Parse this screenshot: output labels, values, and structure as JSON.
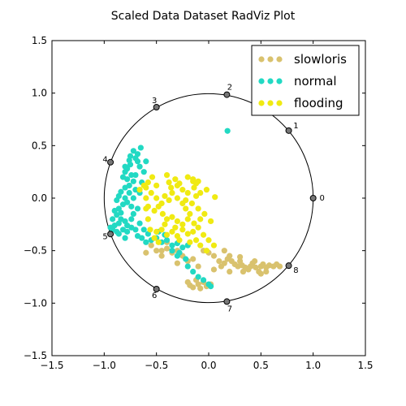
{
  "chart_data": {
    "type": "scatter",
    "title": "Scaled Data Dataset RadViz Plot",
    "xlim": [
      -1.5,
      1.5
    ],
    "ylim": [
      -1.5,
      1.5
    ],
    "x_ticks": [
      "−1.5",
      "−1.0",
      "−0.5",
      "0.0",
      "0.5",
      "1.0",
      "1.5"
    ],
    "y_ticks": [
      "−1.5",
      "−1.0",
      "−0.5",
      "0.0",
      "0.5",
      "1.0",
      "1.5"
    ],
    "grid": false,
    "legend_position": "top-right",
    "unit_circle_radius": 1.0,
    "anchors": [
      {
        "label": "0",
        "x": 1.0,
        "y": 0.0
      },
      {
        "label": "1",
        "x": 0.766,
        "y": 0.643
      },
      {
        "label": "2",
        "x": 0.174,
        "y": 0.985
      },
      {
        "label": "3",
        "x": -0.5,
        "y": 0.866
      },
      {
        "label": "4",
        "x": -0.94,
        "y": 0.342
      },
      {
        "label": "5",
        "x": -0.94,
        "y": -0.342
      },
      {
        "label": "6",
        "x": -0.5,
        "y": -0.866
      },
      {
        "label": "7",
        "x": 0.174,
        "y": -0.985
      },
      {
        "label": "8",
        "x": 0.766,
        "y": -0.643
      }
    ],
    "series": [
      {
        "name": "slowloris",
        "color": "#d9c26e",
        "points": [
          [
            -0.55,
            -0.45
          ],
          [
            -0.5,
            -0.5
          ],
          [
            -0.45,
            -0.5
          ],
          [
            -0.4,
            -0.48
          ],
          [
            -0.35,
            -0.52
          ],
          [
            -0.3,
            -0.5
          ],
          [
            -0.25,
            -0.55
          ],
          [
            -0.2,
            -0.6
          ],
          [
            -0.15,
            -0.58
          ],
          [
            -0.05,
            -0.5
          ],
          [
            0.0,
            -0.52
          ],
          [
            0.05,
            -0.55
          ],
          [
            0.1,
            -0.6
          ],
          [
            0.12,
            -0.65
          ],
          [
            0.15,
            -0.62
          ],
          [
            0.18,
            -0.58
          ],
          [
            0.22,
            -0.6
          ],
          [
            0.25,
            -0.63
          ],
          [
            0.28,
            -0.65
          ],
          [
            0.3,
            -0.6
          ],
          [
            0.32,
            -0.64
          ],
          [
            0.35,
            -0.66
          ],
          [
            0.38,
            -0.68
          ],
          [
            0.4,
            -0.65
          ],
          [
            0.42,
            -0.62
          ],
          [
            0.45,
            -0.66
          ],
          [
            0.48,
            -0.7
          ],
          [
            0.5,
            -0.65
          ],
          [
            0.52,
            -0.63
          ],
          [
            0.55,
            -0.66
          ],
          [
            0.58,
            -0.64
          ],
          [
            0.62,
            -0.65
          ],
          [
            0.65,
            -0.63
          ],
          [
            0.68,
            -0.65
          ],
          [
            0.55,
            -0.7
          ],
          [
            0.3,
            -0.56
          ],
          [
            0.2,
            -0.55
          ],
          [
            0.33,
            -0.7
          ],
          [
            0.44,
            -0.6
          ],
          [
            0.5,
            -0.72
          ],
          [
            -0.2,
            -0.8
          ],
          [
            -0.15,
            -0.85
          ],
          [
            -0.1,
            -0.82
          ],
          [
            -0.05,
            -0.8
          ],
          [
            -0.12,
            -0.78
          ],
          [
            -0.18,
            -0.83
          ],
          [
            -0.08,
            -0.86
          ],
          [
            -0.02,
            -0.84
          ],
          [
            0.02,
            -0.82
          ],
          [
            -0.3,
            -0.62
          ],
          [
            -0.1,
            -0.65
          ],
          [
            0.05,
            -0.68
          ],
          [
            0.15,
            -0.5
          ],
          [
            0.2,
            -0.7
          ],
          [
            -0.4,
            -0.42
          ],
          [
            -0.45,
            -0.55
          ],
          [
            -0.6,
            -0.52
          ]
        ]
      },
      {
        "name": "normal",
        "color": "#22d9c3",
        "points": [
          [
            0.18,
            0.64
          ],
          [
            -0.65,
            0.48
          ],
          [
            -0.68,
            0.42
          ],
          [
            -0.72,
            0.45
          ],
          [
            -0.7,
            0.38
          ],
          [
            -0.75,
            0.4
          ],
          [
            -0.75,
            0.32
          ],
          [
            -0.78,
            0.28
          ],
          [
            -0.8,
            0.25
          ],
          [
            -0.82,
            0.2
          ],
          [
            -0.78,
            0.18
          ],
          [
            -0.76,
            0.12
          ],
          [
            -0.8,
            0.1
          ],
          [
            -0.84,
            0.06
          ],
          [
            -0.86,
            0.02
          ],
          [
            -0.8,
            0.0
          ],
          [
            -0.78,
            -0.04
          ],
          [
            -0.82,
            -0.06
          ],
          [
            -0.86,
            -0.1
          ],
          [
            -0.9,
            -0.12
          ],
          [
            -0.88,
            -0.16
          ],
          [
            -0.84,
            -0.2
          ],
          [
            -0.8,
            -0.22
          ],
          [
            -0.86,
            -0.24
          ],
          [
            -0.9,
            -0.26
          ],
          [
            -0.92,
            -0.3
          ],
          [
            -0.88,
            -0.32
          ],
          [
            -0.82,
            -0.3
          ],
          [
            -0.78,
            -0.26
          ],
          [
            -0.74,
            -0.2
          ],
          [
            -0.72,
            -0.15
          ],
          [
            -0.74,
            -0.08
          ],
          [
            -0.72,
            0.0
          ],
          [
            -0.7,
            0.08
          ],
          [
            -0.72,
            0.16
          ],
          [
            -0.7,
            0.22
          ],
          [
            -0.66,
            0.3
          ],
          [
            -0.68,
            0.35
          ],
          [
            -0.76,
            0.36
          ],
          [
            -0.8,
            0.3
          ],
          [
            -0.74,
            0.22
          ],
          [
            -0.76,
            0.05
          ],
          [
            -0.84,
            -0.14
          ],
          [
            -0.78,
            -0.32
          ],
          [
            -0.74,
            -0.28
          ],
          [
            -0.7,
            -0.3
          ],
          [
            -0.68,
            -0.36
          ],
          [
            -0.64,
            -0.38
          ],
          [
            -0.6,
            -0.42
          ],
          [
            -0.55,
            -0.4
          ],
          [
            -0.5,
            -0.38
          ],
          [
            -0.45,
            -0.42
          ],
          [
            -0.4,
            -0.4
          ],
          [
            -0.35,
            -0.45
          ],
          [
            -0.3,
            -0.43
          ],
          [
            -0.25,
            -0.47
          ],
          [
            -0.2,
            -0.45
          ],
          [
            -0.3,
            -0.55
          ],
          [
            -0.35,
            -0.5
          ],
          [
            -0.28,
            -0.52
          ],
          [
            -0.22,
            -0.58
          ],
          [
            -0.2,
            -0.65
          ],
          [
            -0.15,
            -0.7
          ],
          [
            -0.1,
            -0.75
          ],
          [
            -0.05,
            -0.78
          ],
          [
            0.0,
            -0.82
          ],
          [
            0.02,
            -0.84
          ],
          [
            -0.42,
            -0.35
          ],
          [
            -0.48,
            -0.32
          ],
          [
            -0.58,
            -0.34
          ],
          [
            -0.62,
            -0.3
          ],
          [
            -0.66,
            -0.24
          ],
          [
            -0.68,
            -0.1
          ],
          [
            -0.66,
            0.05
          ],
          [
            -0.64,
            0.15
          ],
          [
            -0.62,
            0.25
          ],
          [
            -0.6,
            0.35
          ],
          [
            -0.88,
            -0.02
          ],
          [
            -0.92,
            -0.2
          ],
          [
            -0.94,
            -0.28
          ],
          [
            -0.86,
            -0.34
          ],
          [
            -0.8,
            -0.38
          ]
        ]
      },
      {
        "name": "flooding",
        "color": "#f0ea12",
        "points": [
          [
            -0.4,
            0.22
          ],
          [
            -0.38,
            0.15
          ],
          [
            -0.32,
            0.18
          ],
          [
            -0.3,
            0.12
          ],
          [
            -0.25,
            0.08
          ],
          [
            -0.2,
            0.2
          ],
          [
            -0.15,
            0.18
          ],
          [
            -0.1,
            0.16
          ],
          [
            -0.14,
            0.1
          ],
          [
            -0.2,
            0.05
          ],
          [
            -0.12,
            0.02
          ],
          [
            -0.08,
            0.05
          ],
          [
            -0.02,
            0.08
          ],
          [
            0.06,
            0.01
          ],
          [
            -0.15,
            0.16
          ],
          [
            -0.12,
            0.14
          ],
          [
            -0.6,
            0.1
          ],
          [
            -0.55,
            0.05
          ],
          [
            -0.5,
            0.0
          ],
          [
            -0.45,
            -0.05
          ],
          [
            -0.42,
            0.02
          ],
          [
            -0.38,
            -0.02
          ],
          [
            -0.35,
            0.05
          ],
          [
            -0.3,
            0.0
          ],
          [
            -0.25,
            -0.05
          ],
          [
            -0.6,
            0.0
          ],
          [
            -0.58,
            -0.08
          ],
          [
            -0.52,
            -0.12
          ],
          [
            -0.48,
            -0.08
          ],
          [
            -0.44,
            -0.15
          ],
          [
            -0.4,
            -0.2
          ],
          [
            -0.35,
            -0.18
          ],
          [
            -0.3,
            -0.22
          ],
          [
            -0.25,
            -0.25
          ],
          [
            -0.2,
            -0.2
          ],
          [
            -0.18,
            -0.15
          ],
          [
            -0.22,
            -0.1
          ],
          [
            -0.56,
            -0.3
          ],
          [
            -0.5,
            -0.32
          ],
          [
            -0.45,
            -0.3
          ],
          [
            -0.4,
            -0.35
          ],
          [
            -0.35,
            -0.32
          ],
          [
            -0.3,
            -0.36
          ],
          [
            -0.25,
            -0.3
          ],
          [
            -0.2,
            -0.34
          ],
          [
            -0.15,
            -0.32
          ],
          [
            -0.1,
            -0.28
          ],
          [
            -0.05,
            -0.35
          ],
          [
            0.0,
            -0.4
          ],
          [
            0.05,
            -0.45
          ],
          [
            -0.12,
            -0.4
          ],
          [
            -0.08,
            -0.45
          ],
          [
            -0.02,
            -0.5
          ],
          [
            -0.18,
            -0.42
          ],
          [
            -0.52,
            -0.38
          ],
          [
            -0.48,
            -0.42
          ],
          [
            -0.28,
            -0.4
          ],
          [
            -0.62,
            0.12
          ],
          [
            -0.66,
            0.08
          ],
          [
            -0.58,
            0.15
          ],
          [
            -0.54,
            0.2
          ],
          [
            -0.5,
            0.12
          ],
          [
            -0.36,
            0.1
          ],
          [
            -0.28,
            0.14
          ],
          [
            -0.22,
            -0.02
          ],
          [
            -0.16,
            -0.05
          ],
          [
            -0.1,
            -0.1
          ],
          [
            -0.04,
            -0.15
          ],
          [
            0.02,
            -0.22
          ],
          [
            -0.14,
            -0.24
          ],
          [
            -0.08,
            -0.2
          ],
          [
            -0.32,
            -0.28
          ],
          [
            -0.42,
            -0.25
          ],
          [
            -0.58,
            -0.2
          ],
          [
            -0.6,
            -0.1
          ]
        ]
      }
    ]
  }
}
